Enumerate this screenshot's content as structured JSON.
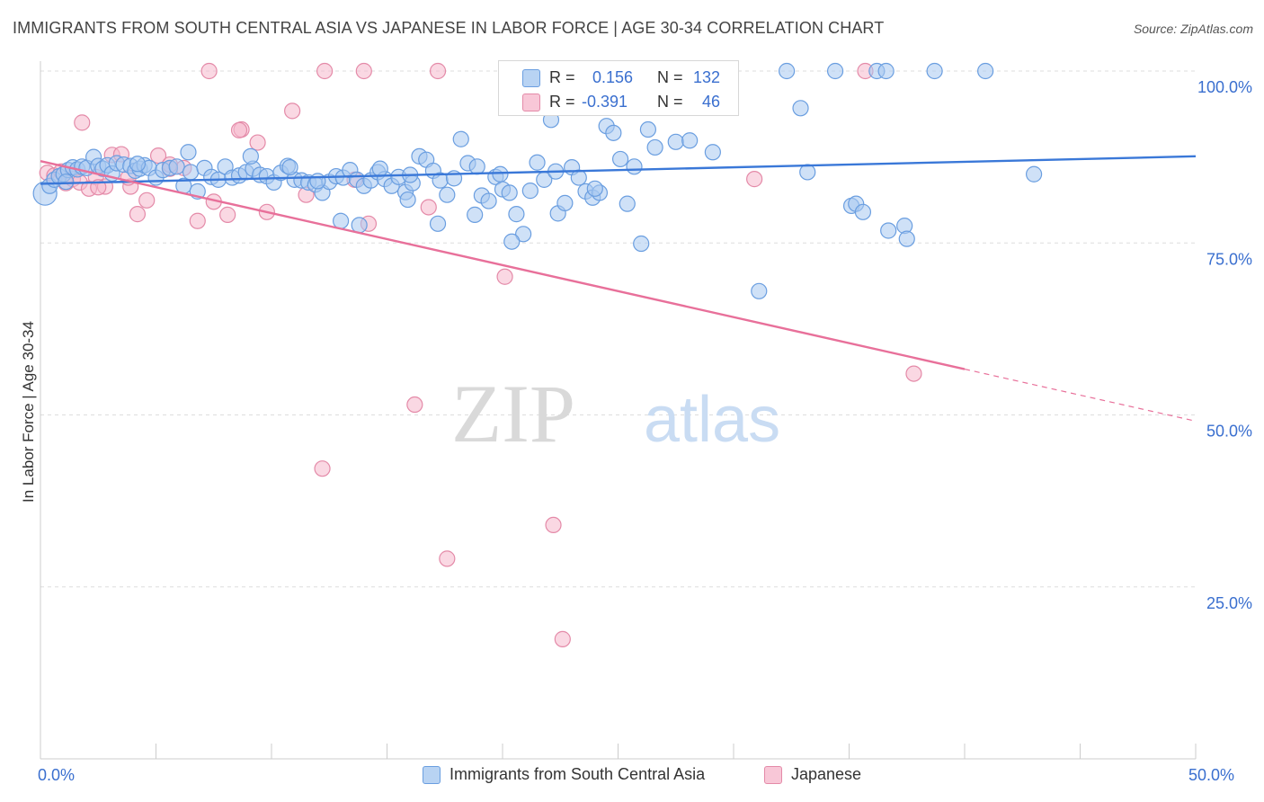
{
  "header": {
    "title": "IMMIGRANTS FROM SOUTH CENTRAL ASIA VS JAPANESE IN LABOR FORCE | AGE 30-34 CORRELATION CHART",
    "source": "Source: ZipAtlas.com"
  },
  "watermark": {
    "zip": "ZIP",
    "atlas": "atlas"
  },
  "legend_top": {
    "rows": [
      {
        "r_label": "R =",
        "r_value": "0.156",
        "n_label": "N =",
        "n_value": "132"
      },
      {
        "r_label": "R =",
        "r_value": "-0.391",
        "n_label": "N =",
        "n_value": "46"
      }
    ]
  },
  "legend_bottom": [
    {
      "label": "Immigrants from South Central Asia"
    },
    {
      "label": "Japanese"
    }
  ],
  "colors": {
    "blue_fill": "#a8c8f0",
    "blue_stroke": "#6a9ee0",
    "blue_line": "#3a78d8",
    "pink_fill": "#f5b8cc",
    "pink_stroke": "#e48aa8",
    "pink_line": "#e8709a",
    "accent_text": "#3a6fcf",
    "grid": "#dddddd"
  },
  "chart_data": {
    "type": "scatter",
    "title": "IMMIGRANTS FROM SOUTH CENTRAL ASIA VS JAPANESE IN LABOR FORCE | AGE 30-34 CORRELATION CHART",
    "xlabel": "",
    "ylabel": "In Labor Force | Age 30-34",
    "xlim": [
      0,
      50
    ],
    "ylim": [
      0,
      100
    ],
    "x_tick_labels": [
      "0.0%",
      "50.0%"
    ],
    "y_tick_labels": [
      "100.0%",
      "75.0%",
      "50.0%",
      "25.0%"
    ],
    "y_ticks": [
      100,
      75,
      50,
      25
    ],
    "grid": "horizontal dashed",
    "legend_position": "bottom",
    "series": [
      {
        "name": "Immigrants from South Central Asia",
        "r": 0.156,
        "n": 132,
        "trend": {
          "x": [
            0,
            50
          ],
          "y": [
            83.6,
            87.6
          ],
          "dashed_from": null
        },
        "points": [
          [
            0.2,
            82.2
          ],
          [
            0.4,
            83.3
          ],
          [
            0.6,
            84.2
          ],
          [
            0.8,
            84.7
          ],
          [
            1.0,
            85.0
          ],
          [
            1.2,
            85.6
          ],
          [
            1.4,
            86.0
          ],
          [
            1.6,
            85.7
          ],
          [
            1.8,
            86.1
          ],
          [
            2.0,
            85.9
          ],
          [
            2.3,
            87.5
          ],
          [
            2.5,
            86.2
          ],
          [
            2.7,
            85.8
          ],
          [
            2.9,
            86.3
          ],
          [
            3.1,
            85.1
          ],
          [
            3.3,
            86.6
          ],
          [
            3.6,
            86.4
          ],
          [
            3.9,
            86.2
          ],
          [
            4.1,
            85.5
          ],
          [
            4.3,
            85.8
          ],
          [
            4.5,
            86.3
          ],
          [
            4.7,
            85.9
          ],
          [
            5.0,
            84.5
          ],
          [
            5.3,
            85.6
          ],
          [
            5.6,
            85.9
          ],
          [
            5.9,
            86.1
          ],
          [
            6.2,
            83.3
          ],
          [
            6.5,
            85.3
          ],
          [
            6.8,
            82.5
          ],
          [
            7.1,
            85.9
          ],
          [
            7.4,
            84.6
          ],
          [
            7.7,
            84.2
          ],
          [
            8.0,
            86.1
          ],
          [
            8.3,
            84.5
          ],
          [
            8.6,
            84.8
          ],
          [
            8.9,
            85.3
          ],
          [
            9.2,
            85.8
          ],
          [
            9.5,
            84.9
          ],
          [
            9.8,
            84.7
          ],
          [
            10.1,
            83.8
          ],
          [
            10.4,
            85.2
          ],
          [
            10.7,
            86.2
          ],
          [
            11.0,
            84.2
          ],
          [
            11.3,
            84.1
          ],
          [
            11.6,
            83.8
          ],
          [
            11.9,
            83.5
          ],
          [
            12.2,
            82.3
          ],
          [
            12.5,
            83.9
          ],
          [
            12.8,
            84.7
          ],
          [
            13.1,
            84.5
          ],
          [
            13.4,
            85.6
          ],
          [
            13.7,
            84.2
          ],
          [
            14.0,
            83.3
          ],
          [
            14.3,
            84.1
          ],
          [
            14.6,
            85.3
          ],
          [
            14.9,
            84.3
          ],
          [
            15.2,
            83.3
          ],
          [
            15.5,
            84.6
          ],
          [
            15.8,
            82.4
          ],
          [
            16.1,
            83.7
          ],
          [
            16.4,
            87.6
          ],
          [
            16.7,
            87.1
          ],
          [
            17.0,
            85.5
          ],
          [
            17.3,
            84.1
          ],
          [
            17.6,
            82.0
          ],
          [
            17.9,
            84.4
          ],
          [
            18.2,
            90.1
          ],
          [
            18.5,
            86.6
          ],
          [
            18.8,
            79.1
          ],
          [
            19.1,
            81.9
          ],
          [
            19.4,
            81.1
          ],
          [
            19.7,
            84.6
          ],
          [
            20.0,
            82.8
          ],
          [
            20.3,
            82.3
          ],
          [
            20.6,
            79.2
          ],
          [
            20.9,
            76.3
          ],
          [
            21.2,
            82.6
          ],
          [
            21.5,
            86.7
          ],
          [
            21.8,
            84.2
          ],
          [
            22.1,
            92.9
          ],
          [
            22.4,
            79.3
          ],
          [
            22.7,
            80.8
          ],
          [
            23.0,
            86.0
          ],
          [
            23.3,
            84.5
          ],
          [
            23.6,
            82.5
          ],
          [
            23.9,
            81.6
          ],
          [
            24.2,
            82.3
          ],
          [
            24.5,
            92.0
          ],
          [
            24.8,
            91.0
          ],
          [
            25.1,
            87.2
          ],
          [
            25.4,
            80.7
          ],
          [
            25.7,
            86.1
          ],
          [
            26.0,
            74.9
          ],
          [
            26.3,
            91.5
          ],
          [
            26.6,
            88.9
          ],
          [
            27.5,
            89.7
          ],
          [
            28.1,
            89.9
          ],
          [
            29.1,
            88.2
          ],
          [
            31.1,
            68.0
          ],
          [
            32.3,
            100.0
          ],
          [
            32.9,
            94.6
          ],
          [
            33.2,
            85.3
          ],
          [
            34.4,
            100.0
          ],
          [
            35.1,
            80.4
          ],
          [
            35.3,
            80.7
          ],
          [
            35.6,
            79.5
          ],
          [
            36.2,
            100.0
          ],
          [
            36.6,
            100.0
          ],
          [
            36.7,
            76.8
          ],
          [
            37.4,
            77.5
          ],
          [
            37.5,
            75.6
          ],
          [
            38.7,
            100.0
          ],
          [
            40.9,
            100.0
          ],
          [
            43.0,
            85.0
          ],
          [
            29.5,
            97.8
          ],
          [
            13.0,
            78.2
          ],
          [
            13.8,
            77.6
          ],
          [
            6.4,
            88.2
          ],
          [
            4.2,
            86.5
          ],
          [
            1.1,
            83.9
          ],
          [
            20.4,
            75.2
          ],
          [
            22.3,
            85.4
          ],
          [
            15.9,
            81.3
          ],
          [
            17.2,
            77.8
          ],
          [
            19.9,
            85.0
          ],
          [
            9.1,
            87.6
          ],
          [
            16.0,
            84.9
          ],
          [
            18.9,
            86.1
          ],
          [
            24.0,
            82.9
          ],
          [
            10.8,
            86.0
          ],
          [
            12.0,
            84.0
          ],
          [
            14.7,
            85.8
          ]
        ]
      },
      {
        "name": "Japanese",
        "r": -0.391,
        "n": 46,
        "trend": {
          "x": [
            0,
            50
          ],
          "y": [
            86.9,
            49.1
          ],
          "dashed_from": 40
        },
        "points": [
          [
            0.3,
            85.2
          ],
          [
            0.6,
            84.8
          ],
          [
            0.9,
            85.4
          ],
          [
            1.1,
            83.7
          ],
          [
            1.4,
            84.3
          ],
          [
            1.7,
            83.8
          ],
          [
            2.1,
            82.9
          ],
          [
            2.4,
            84.6
          ],
          [
            2.8,
            83.2
          ],
          [
            3.1,
            87.8
          ],
          [
            3.5,
            87.9
          ],
          [
            3.9,
            83.2
          ],
          [
            4.2,
            79.2
          ],
          [
            4.6,
            81.2
          ],
          [
            5.1,
            87.7
          ],
          [
            5.6,
            85.8
          ],
          [
            6.2,
            85.9
          ],
          [
            6.8,
            78.2
          ],
          [
            7.5,
            81.0
          ],
          [
            8.1,
            79.1
          ],
          [
            8.7,
            91.5
          ],
          [
            9.4,
            89.6
          ],
          [
            9.8,
            79.5
          ],
          [
            10.9,
            94.2
          ],
          [
            12.3,
            100.0
          ],
          [
            14.0,
            100.0
          ],
          [
            13.6,
            84.2
          ],
          [
            14.2,
            77.8
          ],
          [
            16.2,
            51.5
          ],
          [
            12.2,
            42.2
          ],
          [
            16.8,
            80.2
          ],
          [
            17.2,
            100.0
          ],
          [
            17.6,
            29.1
          ],
          [
            20.1,
            70.1
          ],
          [
            22.2,
            34.0
          ],
          [
            22.6,
            17.4
          ],
          [
            30.9,
            84.3
          ],
          [
            35.7,
            100.0
          ],
          [
            37.8,
            56.0
          ],
          [
            1.8,
            92.5
          ],
          [
            3.8,
            84.5
          ],
          [
            5.6,
            86.4
          ],
          [
            7.3,
            100.0
          ],
          [
            2.5,
            83.1
          ],
          [
            8.6,
            91.4
          ],
          [
            11.5,
            82.0
          ]
        ]
      }
    ]
  }
}
